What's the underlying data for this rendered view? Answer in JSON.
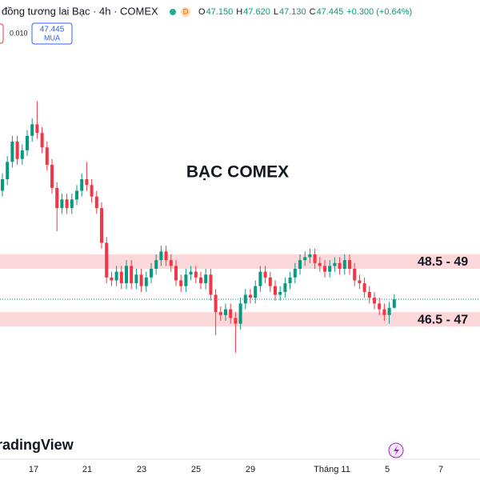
{
  "header": {
    "symbol": "đồng tương lai Bạc · 4h · COMEX",
    "badge": "D",
    "ohlc": [
      {
        "key": "O",
        "value": "47.150"
      },
      {
        "key": "H",
        "value": "47.620"
      },
      {
        "key": "L",
        "value": "47.130"
      },
      {
        "key": "C",
        "value": "47.445"
      }
    ],
    "change": "+0.300 (+0.64%)"
  },
  "order_panel": {
    "spread": "0.010",
    "buy_price": "47.445",
    "buy_label": "MUA"
  },
  "watermark": "BẠC COMEX",
  "logo": "TradingView",
  "chart_data": {
    "type": "candlestick",
    "ylim": [
      42.3,
      57.8
    ],
    "open": [
      51.2,
      51.6,
      52.2,
      52.9,
      52.3,
      52.6,
      53.1,
      53.5,
      53.2,
      52.7,
      52.1,
      51.3,
      50.6,
      50.9,
      50.6,
      50.9,
      51.2,
      51.6,
      51.4,
      51.0,
      50.6,
      49.4,
      48.2,
      48.1,
      48.4,
      48.0,
      48.6,
      48.0,
      48.3,
      47.9,
      48.2,
      48.5,
      48.8,
      49.1,
      48.8,
      48.6,
      48.1,
      47.9,
      48.3,
      48.4,
      48.2,
      48.0,
      48.3,
      47.6,
      47.0,
      46.9,
      47.1,
      46.8,
      46.6,
      47.3,
      47.6,
      47.5,
      47.9,
      48.4,
      48.2,
      47.9,
      47.6,
      47.7,
      48.0,
      48.2,
      48.5,
      48.8,
      48.9,
      49.0,
      48.7,
      48.6,
      48.4,
      48.6,
      48.7,
      48.5,
      48.8,
      48.5,
      48.1,
      48.0,
      47.7,
      47.5,
      47.3,
      47.1,
      46.9,
      47.15
    ],
    "high": [
      51.8,
      52.4,
      53.1,
      53.1,
      52.8,
      53.3,
      53.7,
      54.3,
      53.4,
      52.9,
      52.3,
      51.5,
      51.1,
      51.1,
      51.1,
      51.4,
      51.8,
      52.2,
      51.6,
      51.2,
      50.8,
      49.6,
      48.4,
      48.6,
      48.6,
      48.8,
      48.8,
      48.5,
      48.5,
      48.4,
      48.7,
      49.0,
      49.3,
      49.3,
      49.0,
      48.8,
      48.3,
      48.5,
      48.6,
      48.6,
      48.4,
      48.5,
      48.5,
      47.8,
      47.2,
      47.3,
      47.3,
      47.0,
      47.5,
      47.8,
      47.8,
      48.1,
      48.6,
      48.6,
      48.4,
      48.1,
      47.9,
      48.2,
      48.4,
      48.7,
      49.0,
      49.1,
      49.2,
      49.2,
      48.9,
      48.8,
      48.8,
      48.9,
      48.9,
      49.0,
      49.0,
      48.7,
      48.3,
      48.2,
      47.9,
      47.7,
      47.5,
      47.3,
      47.35,
      47.62
    ],
    "low": [
      51.0,
      51.4,
      52.0,
      52.1,
      52.1,
      52.4,
      52.9,
      53.0,
      52.5,
      51.9,
      51.1,
      49.8,
      50.4,
      50.4,
      50.4,
      50.7,
      51.0,
      51.2,
      50.8,
      50.4,
      49.2,
      48.0,
      47.9,
      47.9,
      47.8,
      47.8,
      47.8,
      47.8,
      47.7,
      47.7,
      48.0,
      48.3,
      48.6,
      48.6,
      48.4,
      47.9,
      47.7,
      47.7,
      48.1,
      48.0,
      47.8,
      47.8,
      47.4,
      46.2,
      46.7,
      46.7,
      46.6,
      45.6,
      46.4,
      47.1,
      47.3,
      47.3,
      47.7,
      48.0,
      47.7,
      47.4,
      47.4,
      47.5,
      47.8,
      48.0,
      48.3,
      48.6,
      48.7,
      48.5,
      48.4,
      48.2,
      48.2,
      48.4,
      48.3,
      48.3,
      48.3,
      47.9,
      47.8,
      47.5,
      47.3,
      47.1,
      46.9,
      46.7,
      46.6,
      47.13
    ],
    "close": [
      51.6,
      52.2,
      52.9,
      52.3,
      52.6,
      53.1,
      53.5,
      53.2,
      52.7,
      52.1,
      51.3,
      50.6,
      50.9,
      50.6,
      50.9,
      51.2,
      51.6,
      51.4,
      51.0,
      50.6,
      49.4,
      48.2,
      48.1,
      48.4,
      48.0,
      48.6,
      48.0,
      48.3,
      47.9,
      48.2,
      48.5,
      48.8,
      49.1,
      48.8,
      48.6,
      48.1,
      47.9,
      48.3,
      48.4,
      48.2,
      48.0,
      48.3,
      47.6,
      47.0,
      46.9,
      47.1,
      46.8,
      46.6,
      47.3,
      47.6,
      47.5,
      47.9,
      48.4,
      48.2,
      47.9,
      47.6,
      47.7,
      48.0,
      48.2,
      48.5,
      48.8,
      48.9,
      49.0,
      48.7,
      48.6,
      48.4,
      48.6,
      48.7,
      48.5,
      48.8,
      48.5,
      48.1,
      48.0,
      47.7,
      47.5,
      47.3,
      47.1,
      46.9,
      47.15,
      47.445
    ],
    "up_color": "#089981",
    "down_color": "#f23645",
    "zones": [
      {
        "label": "48.5 - 49",
        "low": 48.5,
        "high": 49,
        "color": "#fdd8da"
      },
      {
        "label": "46.5 - 47",
        "low": 46.5,
        "high": 47,
        "color": "#fdd8da"
      }
    ],
    "x_labels": [
      "17",
      "21",
      "23",
      "25",
      "29",
      "Tháng 11",
      "5",
      "7"
    ]
  }
}
